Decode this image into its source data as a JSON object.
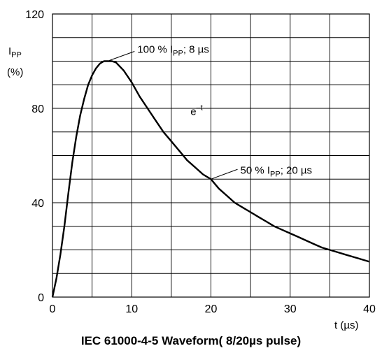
{
  "chart_data": {
    "type": "line",
    "title": "IEC 61000-4-5 Waveform( 8/20µs pulse)",
    "ylabel_main": "I",
    "ylabel_sub": "PP",
    "ylabel_unit": "(%)",
    "xlabel": "t (µs)",
    "xlim": [
      0,
      40
    ],
    "ylim": [
      0,
      120
    ],
    "grid": true,
    "x_ticks": [
      0,
      10,
      20,
      30,
      40
    ],
    "y_ticks": [
      0,
      40,
      80,
      120
    ],
    "x_tick_labels": [
      "0",
      "10",
      "20",
      "30",
      "40"
    ],
    "y_tick_labels": [
      "0",
      "40",
      "80",
      "120"
    ],
    "series": [
      {
        "x": [
          0,
          0.5,
          1,
          1.5,
          2,
          2.5,
          3,
          3.5,
          4,
          4.5,
          5,
          5.5,
          6,
          6.5,
          7,
          7.5,
          8,
          9,
          10,
          11,
          12,
          13,
          14,
          15,
          16,
          17,
          18,
          19,
          20,
          21,
          22,
          23,
          24,
          25,
          26,
          27,
          28,
          29,
          30,
          31,
          32,
          33,
          34,
          35,
          36,
          37,
          38,
          39,
          40
        ],
        "y": [
          0,
          8,
          18,
          30,
          44,
          57,
          68,
          77,
          84,
          90,
          94,
          97,
          99,
          100,
          100,
          100,
          99.5,
          96,
          91,
          85,
          80,
          75,
          70,
          66,
          62,
          58,
          55,
          52,
          50,
          46,
          43,
          40,
          38,
          36,
          34,
          32,
          30,
          28.5,
          27,
          25.5,
          24,
          22.5,
          21,
          20,
          19,
          18,
          17,
          16,
          15
        ]
      }
    ],
    "annotations": {
      "peak_text": "100 % I",
      "peak_sub": "PP",
      "peak_rest": "; 8 µs",
      "peak_point": [
        7,
        100
      ],
      "half_text": "50 % I",
      "half_sub": "PP",
      "half_rest": "; 20 µs",
      "half_point": [
        20,
        50
      ],
      "exp_base": "e",
      "exp_sup": "–t",
      "exp_point": [
        16,
        76
      ]
    }
  }
}
